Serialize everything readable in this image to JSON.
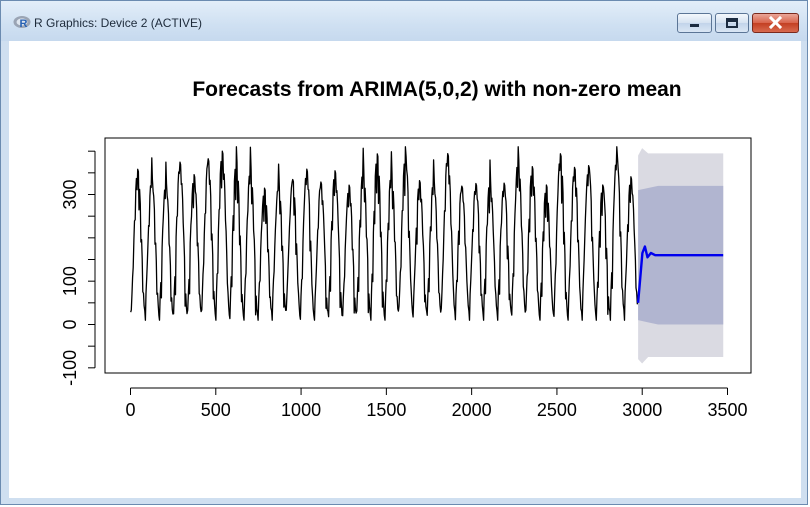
{
  "window": {
    "title": "R Graphics: Device 2 (ACTIVE)",
    "app_icon": "r-logo-icon",
    "controls": [
      "minimize-icon",
      "maximize-icon",
      "close-icon"
    ]
  },
  "colors": {
    "observed_line": "#000000",
    "forecast_line": "#0000ee",
    "interval_95": "#dadae2",
    "interval_80": "#b1b5d0"
  },
  "chart_data": {
    "type": "line",
    "title": "Forecasts from ARIMA(5,0,2) with non-zero mean",
    "xlabel": "",
    "ylabel": "",
    "xlim": [
      0,
      3500
    ],
    "ylim": [
      -100,
      400
    ],
    "x_ticks": [
      "0",
      "500",
      "1000",
      "1500",
      "2000",
      "2500",
      "3000",
      "3500"
    ],
    "y_ticks": [
      "-100",
      "0",
      "100",
      "300"
    ],
    "grid": false,
    "legend": "none",
    "series": [
      {
        "kind": "observed",
        "x_range": [
          1,
          2975
        ],
        "cycle_count": 36,
        "value_range": [
          10,
          410
        ],
        "typical_peak": 350,
        "typical_trough": 20
      },
      {
        "kind": "point_forecast",
        "x_range": [
          2976,
          3475
        ],
        "start_value": 50,
        "peak_value": 180,
        "settled_value": 160
      }
    ],
    "intervals": [
      {
        "level": "80%",
        "x_range": [
          2976,
          3475
        ],
        "lower": 0,
        "upper": 320
      },
      {
        "level": "95%",
        "x_range": [
          2976,
          3475
        ],
        "lower": -75,
        "upper": 395
      }
    ]
  }
}
